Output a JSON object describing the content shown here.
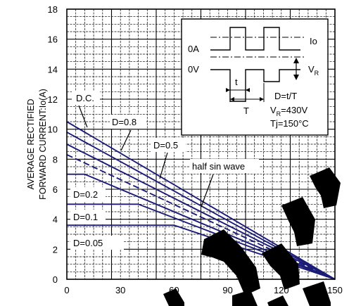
{
  "chart_data": {
    "type": "line",
    "title": "",
    "xlabel": "",
    "ylabel": "AVERAGE RECTIFIED FORWARD CURRENT:Io(A)",
    "ylabel_lines": [
      "AVERAGE RECTIFIED",
      "FORWARD CURRENT:Io(A)"
    ],
    "xlim": [
      0,
      150
    ],
    "ylim": [
      0,
      18
    ],
    "xticks": [
      0,
      30,
      60,
      90,
      120,
      150
    ],
    "yticks": [
      0,
      2,
      4,
      6,
      8,
      10,
      12,
      14,
      16,
      18
    ],
    "grid": true,
    "series": [
      {
        "name": "D.C.",
        "dashed": false,
        "points": [
          [
            0,
            10.5
          ],
          [
            150,
            0
          ]
        ]
      },
      {
        "name": "D=0.8",
        "dashed": false,
        "points": [
          [
            0,
            9.8
          ],
          [
            150,
            0
          ]
        ]
      },
      {
        "name": "D=0.5",
        "dashed": false,
        "points": [
          [
            0,
            9.0
          ],
          [
            150,
            0
          ]
        ]
      },
      {
        "name": "half sin wave",
        "dashed": true,
        "points": [
          [
            0,
            8.3
          ],
          [
            150,
            0
          ]
        ]
      },
      {
        "name": "D=0.2",
        "dashed": false,
        "points": [
          [
            0,
            7.0
          ],
          [
            10,
            7.0
          ],
          [
            150,
            0
          ]
        ]
      },
      {
        "name": "D=0.1",
        "dashed": false,
        "points": [
          [
            0,
            5.0
          ],
          [
            40,
            5.0
          ],
          [
            150,
            0
          ]
        ]
      },
      {
        "name": "D=0.05",
        "dashed": false,
        "points": [
          [
            0,
            3.6
          ],
          [
            60,
            3.6
          ],
          [
            150,
            0
          ]
        ]
      }
    ],
    "annotations": [
      "D.C.",
      "D=0.8",
      "D=0.5",
      "half sin wave",
      "D=0.2",
      "D=0.1",
      "D=0.05"
    ],
    "inset": {
      "io_label": "Io",
      "zero_a_label": "0A",
      "zero_v_label": "0V",
      "vr_label": "V",
      "vr_sub": "R",
      "t_label": "t",
      "T_label": "T",
      "duty_eq": "D=t/T",
      "vr_eq_main": "V",
      "vr_eq_sub": "R",
      "vr_eq_value": "=430V",
      "tj_eq": "Tj=150°C"
    },
    "colors": {
      "series": "#1c1c78",
      "grid": "#000000",
      "background": "#ffffff"
    }
  }
}
